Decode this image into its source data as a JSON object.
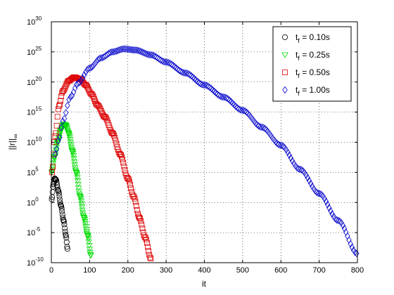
{
  "chart_data": {
    "type": "scatter",
    "xlabel": "it",
    "ylabel": "||r||",
    "ylabel_sub": "∞",
    "xlim": [
      0,
      800
    ],
    "ylim_log10": [
      -10,
      30
    ],
    "yscale": "log",
    "grid": true,
    "grid_style": "dotted",
    "legend_position": "top-right",
    "x_ticks": [
      0,
      100,
      200,
      300,
      400,
      500,
      600,
      700,
      800
    ],
    "x_tick_labels": [
      "0",
      "100",
      "200",
      "300",
      "400",
      "500",
      "600",
      "700",
      "800"
    ],
    "y_ticks_log10": [
      -10,
      -5,
      0,
      5,
      10,
      15,
      20,
      25,
      30
    ],
    "y_tick_labels": [
      {
        "base": "10",
        "exp": "-10"
      },
      {
        "base": "10",
        "exp": "-5"
      },
      {
        "base": "10",
        "exp": "0"
      },
      {
        "base": "10",
        "exp": "5"
      },
      {
        "base": "10",
        "exp": "10"
      },
      {
        "base": "10",
        "exp": "15"
      },
      {
        "base": "10",
        "exp": "20"
      },
      {
        "base": "10",
        "exp": "25"
      },
      {
        "base": "10",
        "exp": "30"
      }
    ],
    "series": [
      {
        "name_sub": "f",
        "name_main": "t",
        "name_value": " = 0.10s",
        "marker": "circle",
        "color": "#000000",
        "x_start": 1,
        "x_end": 42,
        "x_step": 1,
        "note_points": [
          [
            1,
            0.5
          ],
          [
            5,
            3.0
          ],
          [
            9,
            4.0
          ],
          [
            12,
            3.8
          ],
          [
            18,
            2.0
          ],
          [
            25,
            -0.5
          ],
          [
            32,
            -3.0
          ],
          [
            38,
            -5.5
          ],
          [
            42,
            -7.7
          ]
        ]
      },
      {
        "name_sub": "f",
        "name_main": "t",
        "name_value": " = 0.25s",
        "marker": "triangle-down",
        "color": "#00dd00",
        "x_start": 1,
        "x_end": 103,
        "x_step": 1,
        "note_points": [
          [
            1,
            5.0
          ],
          [
            8,
            7.5
          ],
          [
            16,
            10.0
          ],
          [
            25,
            12.0
          ],
          [
            32,
            13.0
          ],
          [
            38,
            12.8
          ],
          [
            45,
            11.5
          ],
          [
            55,
            8.5
          ],
          [
            65,
            5.0
          ],
          [
            75,
            1.0
          ],
          [
            85,
            -2.5
          ],
          [
            95,
            -5.5
          ],
          [
            103,
            -8.8
          ]
        ]
      },
      {
        "name_sub": "f",
        "name_main": "t",
        "name_value": " = 0.50s",
        "marker": "square",
        "color": "#dd0000",
        "x_start": 2,
        "x_end": 260,
        "x_step": 2,
        "note_points": [
          [
            2,
            5.0
          ],
          [
            10,
            11.0
          ],
          [
            20,
            16.0
          ],
          [
            30,
            18.5
          ],
          [
            45,
            20.2
          ],
          [
            60,
            20.8
          ],
          [
            75,
            20.5
          ],
          [
            90,
            19.5
          ],
          [
            105,
            18.0
          ],
          [
            120,
            16.2
          ],
          [
            140,
            14.2
          ],
          [
            160,
            11.5
          ],
          [
            180,
            8.0
          ],
          [
            200,
            4.0
          ],
          [
            215,
            1.0
          ],
          [
            230,
            -2.5
          ],
          [
            245,
            -5.8
          ],
          [
            260,
            -9.3
          ]
        ]
      },
      {
        "name_sub": "f",
        "name_main": "t",
        "name_value": " = 1.00s",
        "marker": "diamond",
        "color": "#0000cc",
        "x_start": 10,
        "x_end": 800,
        "x_step": 4,
        "note_points": [
          [
            10,
            8.0
          ],
          [
            20,
            10.5
          ],
          [
            30,
            13.5
          ],
          [
            50,
            17.5
          ],
          [
            70,
            19.8
          ],
          [
            100,
            22.3
          ],
          [
            130,
            24.0
          ],
          [
            160,
            25.0
          ],
          [
            190,
            25.5
          ],
          [
            220,
            25.3
          ],
          [
            260,
            24.5
          ],
          [
            300,
            23.3
          ],
          [
            350,
            21.5
          ],
          [
            400,
            19.5
          ],
          [
            450,
            17.5
          ],
          [
            500,
            15.3
          ],
          [
            550,
            12.5
          ],
          [
            600,
            9.5
          ],
          [
            650,
            5.5
          ],
          [
            700,
            1.5
          ],
          [
            750,
            -3.0
          ],
          [
            800,
            -8.5
          ]
        ]
      }
    ]
  }
}
